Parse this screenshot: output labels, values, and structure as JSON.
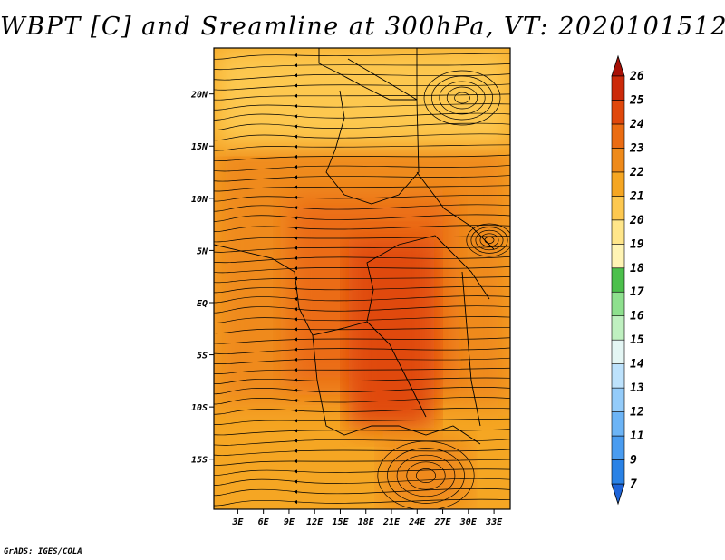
{
  "title": "WBPT [C] and Sreamline at 300hPa, VT: 2020101512",
  "credit": "GrADS: IGES/COLA",
  "chart_data": {
    "type": "heatmap",
    "title": "WBPT [C] and Sreamline at 300hPa, VT: 2020101512",
    "x_ticks": [
      {
        "value": 3,
        "label": "3E"
      },
      {
        "value": 6,
        "label": "6E"
      },
      {
        "value": 9,
        "label": "9E"
      },
      {
        "value": 12,
        "label": "12E"
      },
      {
        "value": 15,
        "label": "15E"
      },
      {
        "value": 18,
        "label": "18E"
      },
      {
        "value": 21,
        "label": "21E"
      },
      {
        "value": 24,
        "label": "24E"
      },
      {
        "value": 27,
        "label": "27E"
      },
      {
        "value": 30,
        "label": "30E"
      },
      {
        "value": 33,
        "label": "33E"
      }
    ],
    "y_ticks": [
      {
        "value": 20,
        "label": "20N"
      },
      {
        "value": 15,
        "label": "15N"
      },
      {
        "value": 10,
        "label": "10N"
      },
      {
        "value": 5,
        "label": "5N"
      },
      {
        "value": 0,
        "label": "EQ"
      },
      {
        "value": -5,
        "label": "5S"
      },
      {
        "value": -10,
        "label": "10S"
      },
      {
        "value": -15,
        "label": "15S"
      }
    ],
    "xlim": [
      0.2,
      34.9
    ],
    "ylim": [
      -19.8,
      24.4
    ],
    "colorbar": {
      "labels": [
        "7",
        "9",
        "11",
        "12",
        "13",
        "14",
        "15",
        "16",
        "17",
        "18",
        "19",
        "20",
        "21",
        "22",
        "23",
        "24",
        "25",
        "26"
      ],
      "colors": [
        "#1e64d8",
        "#2a82e6",
        "#4a9cf0",
        "#6cb4f6",
        "#94ccfa",
        "#bde2fc",
        "#e4f6f4",
        "#bff0c0",
        "#8ee08e",
        "#4cc04c",
        "#fff4b4",
        "#ffe68a",
        "#fdc850",
        "#f5a623",
        "#ef8a1a",
        "#eb6c12",
        "#e0480c",
        "#cc2a0a",
        "#a81006"
      ]
    },
    "regions": [
      {
        "lon": [
          0.2,
          34.9
        ],
        "lat": [
          -19.8,
          24.4
        ],
        "value": 21,
        "color": "#f5a623"
      },
      {
        "lon": [
          0.2,
          34.9
        ],
        "lat": [
          -10,
          15
        ],
        "value": 22,
        "color": "#ef8a1a"
      },
      {
        "lon": [
          9,
          28
        ],
        "lat": [
          -8,
          10
        ],
        "value": 22.5,
        "color": "#eb6c12"
      },
      {
        "lon": [
          16,
          26
        ],
        "lat": [
          -12,
          6
        ],
        "value": 23,
        "color": "#e0480c"
      },
      {
        "lon": [
          0.2,
          34.9
        ],
        "lat": [
          15,
          24.4
        ],
        "value": 20,
        "color": "#fdc850"
      },
      {
        "lon": [
          20,
          30
        ],
        "lat": [
          -19.8,
          -13
        ],
        "value": 22,
        "color": "#ef8a1a"
      }
    ]
  }
}
